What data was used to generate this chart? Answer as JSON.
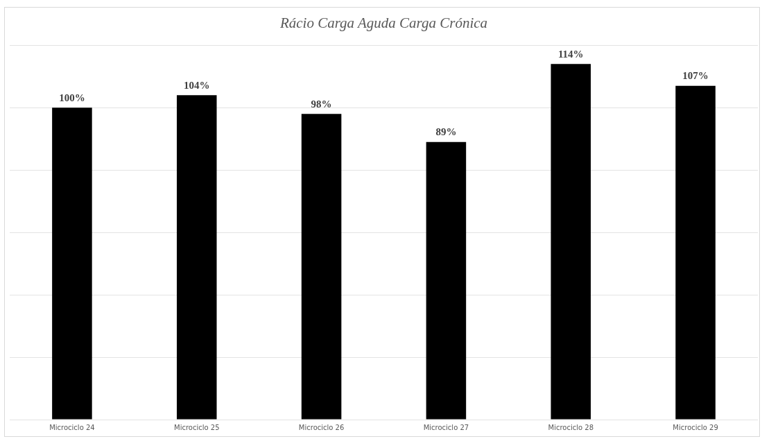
{
  "chart_data": {
    "type": "bar",
    "title": "Rácio Carga Aguda Carga Crónica",
    "categories": [
      "Microciclo 24",
      "Microciclo 25",
      "Microciclo 26",
      "Microciclo 27",
      "Microciclo 28",
      "Microciclo 29"
    ],
    "values": [
      100,
      104,
      98,
      89,
      114,
      107
    ],
    "value_labels": [
      "100%",
      "104%",
      "98%",
      "89%",
      "114%",
      "107%"
    ],
    "color": "#000000",
    "ylim": [
      0,
      120
    ],
    "yticks": [
      {
        "value": 0,
        "label": null
      },
      {
        "value": 20,
        "label": null
      },
      {
        "value": 40,
        "label": null
      },
      {
        "value": 60,
        "label": null
      },
      {
        "value": 80,
        "label": null
      },
      {
        "value": 100,
        "label": null
      },
      {
        "value": 120,
        "label": null
      }
    ],
    "tick_labels": "x",
    "grid": "y",
    "legend": false
  }
}
